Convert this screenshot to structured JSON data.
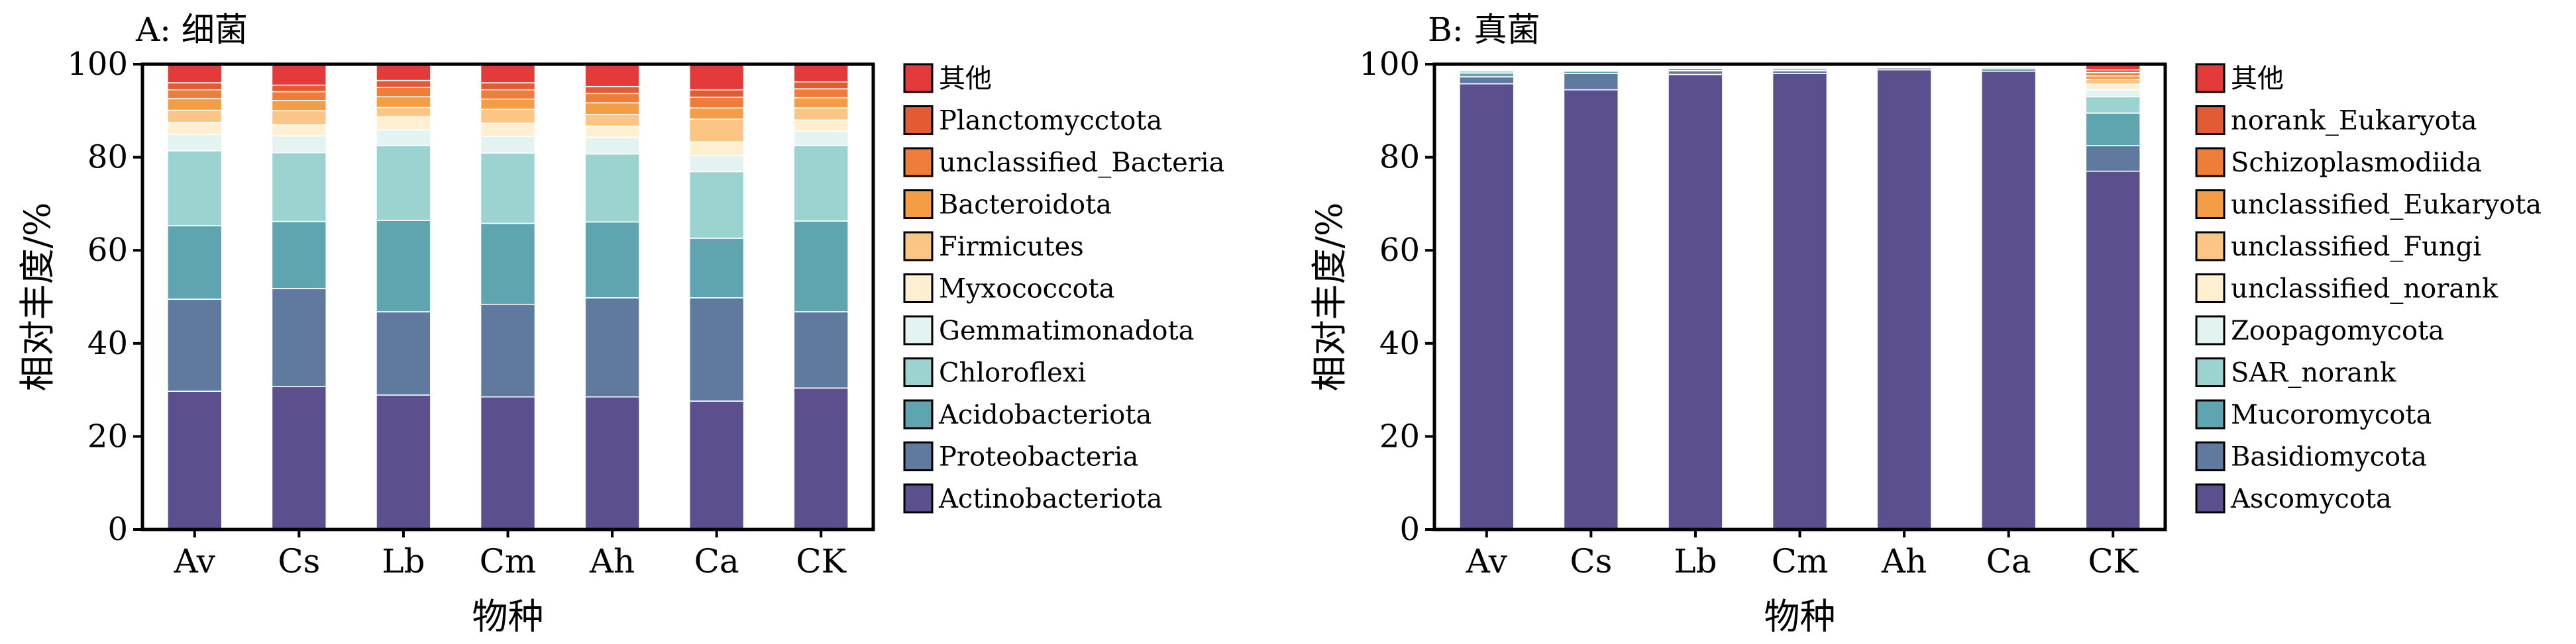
{
  "chart_data": [
    {
      "type": "bar",
      "stacked": true,
      "title": "A: 细菌",
      "xlabel": "物种",
      "ylabel": "相对丰度/%",
      "ylim": [
        0,
        100
      ],
      "yticks": [
        0,
        20,
        40,
        60,
        80,
        100
      ],
      "categories": [
        "Av",
        "Cs",
        "Lb",
        "Cm",
        "Ah",
        "Ca",
        "CK"
      ],
      "legend_position": "right",
      "series": [
        {
          "name": "Actinobacteriota",
          "color": "#5B4F8E",
          "values": [
            29.7,
            30.7,
            28.9,
            28.5,
            28.5,
            27.6,
            30.4
          ]
        },
        {
          "name": "Proteobacteria",
          "color": "#60799F",
          "values": [
            19.8,
            21.1,
            17.9,
            19.9,
            21.3,
            22.2,
            16.4
          ]
        },
        {
          "name": "Acidobacteriota",
          "color": "#5EA5B0",
          "values": [
            15.8,
            14.4,
            19.6,
            17.4,
            16.3,
            12.8,
            19.5
          ]
        },
        {
          "name": "Chloroflexi",
          "color": "#9BD3D1",
          "values": [
            16.1,
            14.8,
            16.1,
            15.1,
            14.6,
            14.3,
            16.2
          ]
        },
        {
          "name": "Gemmatimonadota",
          "color": "#E3F3F2",
          "values": [
            3.5,
            3.6,
            3.4,
            3.6,
            3.6,
            3.5,
            3.1
          ]
        },
        {
          "name": "Myxococcota",
          "color": "#FDEFD0",
          "values": [
            2.6,
            2.4,
            2.8,
            2.8,
            2.4,
            2.9,
            2.4
          ]
        },
        {
          "name": "Firmicutes",
          "color": "#FBC585",
          "values": [
            2.6,
            3.0,
            2.0,
            3.0,
            2.5,
            4.9,
            2.6
          ]
        },
        {
          "name": "Bacteroidota",
          "color": "#F49D45",
          "values": [
            2.5,
            2.2,
            2.3,
            2.2,
            2.5,
            2.4,
            2.2
          ]
        },
        {
          "name": "unclassified_Bacteria",
          "color": "#EE7D3A",
          "values": [
            1.9,
            1.9,
            2.0,
            2.0,
            2.0,
            2.3,
            1.9
          ]
        },
        {
          "name": "Planctomycctota",
          "color": "#E25B34",
          "values": [
            1.5,
            1.4,
            1.5,
            1.5,
            1.5,
            1.6,
            1.5
          ]
        },
        {
          "name": "其他",
          "color": "#E23B3A",
          "values": [
            4.0,
            4.5,
            3.5,
            4.0,
            4.8,
            5.5,
            3.8
          ]
        }
      ]
    },
    {
      "type": "bar",
      "stacked": true,
      "title": "B: 真菌",
      "xlabel": "物种",
      "ylabel": "相对丰度/%",
      "ylim": [
        0,
        100
      ],
      "yticks": [
        0,
        20,
        40,
        60,
        80,
        100
      ],
      "categories": [
        "Av",
        "Cs",
        "Lb",
        "Cm",
        "Ah",
        "Ca",
        "CK"
      ],
      "legend_position": "right",
      "series": [
        {
          "name": "Ascomycota",
          "color": "#5B4F8E",
          "values": [
            95.8,
            94.5,
            97.8,
            98.0,
            98.8,
            98.5,
            77.0
          ]
        },
        {
          "name": "Basidiomycota",
          "color": "#60799F",
          "values": [
            1.5,
            3.5,
            0.8,
            0.6,
            0.4,
            0.5,
            5.5
          ]
        },
        {
          "name": "Mucoromycota",
          "color": "#5EA5B0",
          "values": [
            0.8,
            0.5,
            0.5,
            0.4,
            0.2,
            0.3,
            7.0
          ]
        },
        {
          "name": "SAR_norank",
          "color": "#9BD3D1",
          "values": [
            0.5,
            0.2,
            0.3,
            0.3,
            0.2,
            0.2,
            3.5
          ]
        },
        {
          "name": "Zoopagomycota",
          "color": "#E3F3F2",
          "values": [
            0.3,
            0.2,
            0.2,
            0.2,
            0.1,
            0.1,
            1.5
          ]
        },
        {
          "name": "unclassified_norank",
          "color": "#FDEFD0",
          "values": [
            0.2,
            0.2,
            0.1,
            0.1,
            0.1,
            0.1,
            1.2
          ]
        },
        {
          "name": "unclassified_Fungi",
          "color": "#FBC585",
          "values": [
            0.2,
            0.2,
            0.1,
            0.1,
            0.1,
            0.1,
            1.0
          ]
        },
        {
          "name": "unclassified_Eukaryota",
          "color": "#F49D45",
          "values": [
            0.2,
            0.2,
            0.1,
            0.1,
            0.0,
            0.1,
            0.8
          ]
        },
        {
          "name": "Schizoplasmodiida",
          "color": "#EE7D3A",
          "values": [
            0.2,
            0.2,
            0.1,
            0.1,
            0.0,
            0.1,
            0.7
          ]
        },
        {
          "name": "norank_Eukaryota",
          "color": "#E25B34",
          "values": [
            0.1,
            0.1,
            0.0,
            0.0,
            0.0,
            0.0,
            0.6
          ]
        },
        {
          "name": "其他",
          "color": "#E23B3A",
          "values": [
            0.2,
            0.2,
            0.0,
            0.1,
            0.1,
            0.0,
            1.2
          ]
        }
      ]
    }
  ]
}
